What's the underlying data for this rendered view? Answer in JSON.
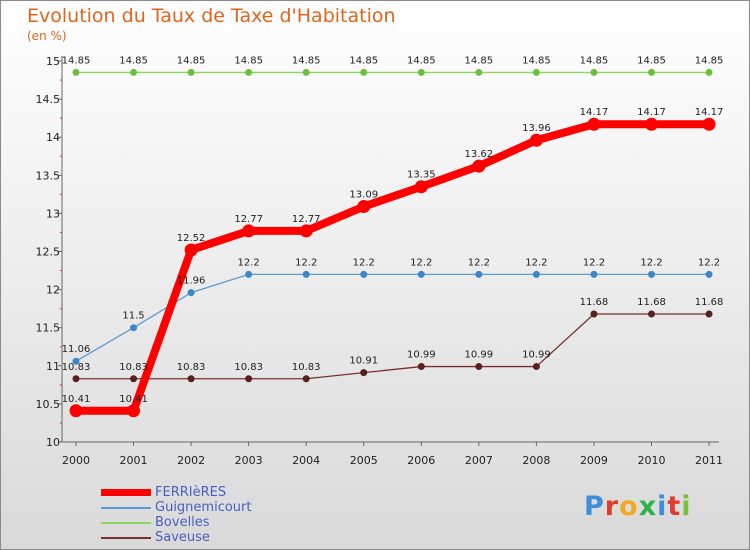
{
  "title": "Evolution du Taux de Taxe d'Habitation",
  "subtitle": "(en %)",
  "logo": "Proxiti",
  "chart_data": {
    "type": "line",
    "x": [
      "2000",
      "2001",
      "2002",
      "2003",
      "2004",
      "2005",
      "2006",
      "2007",
      "2008",
      "2009",
      "2010",
      "2011"
    ],
    "ylim": [
      10,
      15
    ],
    "yticks": [
      10,
      10.5,
      11,
      11.5,
      12,
      12.5,
      13,
      13.5,
      14,
      14.5,
      15
    ],
    "ytick_labels": [
      "10",
      "10.5",
      "11",
      "11.5",
      "12",
      "12.5",
      "13",
      "13.5",
      "14",
      "14.5",
      "15"
    ],
    "grid": false,
    "legend_position": "bottom-left",
    "series": [
      {
        "name": "FERRIèRES",
        "color": "#ff0000",
        "values": [
          10.41,
          10.41,
          12.52,
          12.77,
          12.77,
          13.09,
          13.35,
          13.62,
          13.96,
          14.17,
          14.17,
          14.17
        ],
        "labels": [
          "10.41",
          "10.41",
          "12.52",
          "12.77",
          "12.77",
          "13.09",
          "13.35",
          "13.62",
          "13.96",
          "14.17",
          "14.17",
          "14.17"
        ]
      },
      {
        "name": "Guignemicourt",
        "color": "#5b9bd5",
        "values": [
          11.06,
          11.5,
          11.96,
          12.2,
          12.2,
          12.2,
          12.2,
          12.2,
          12.2,
          12.2,
          12.2,
          12.2
        ],
        "labels": [
          "11.06",
          "11.5",
          "11.96",
          "12.2",
          "12.2",
          "12.2",
          "12.2",
          "12.2",
          "12.2",
          "12.2",
          "12.2",
          "12.2"
        ]
      },
      {
        "name": "Bovelles",
        "color": "#8fd460",
        "values": [
          14.85,
          14.85,
          14.85,
          14.85,
          14.85,
          14.85,
          14.85,
          14.85,
          14.85,
          14.85,
          14.85,
          14.85
        ],
        "labels": [
          "14.85",
          "14.85",
          "14.85",
          "14.85",
          "14.85",
          "14.85",
          "14.85",
          "14.85",
          "14.85",
          "14.85",
          "14.85",
          "14.85"
        ]
      },
      {
        "name": "Saveuse",
        "color": "#7a3030",
        "values": [
          10.83,
          10.83,
          10.83,
          10.83,
          10.83,
          10.91,
          10.99,
          10.99,
          10.99,
          11.68,
          11.68,
          11.68
        ],
        "labels": [
          "10.83",
          "10.83",
          "10.83",
          "10.83",
          "10.83",
          "10.91",
          "10.99",
          "10.99",
          "10.99",
          "11.68",
          "11.68",
          "11.68"
        ]
      }
    ]
  }
}
